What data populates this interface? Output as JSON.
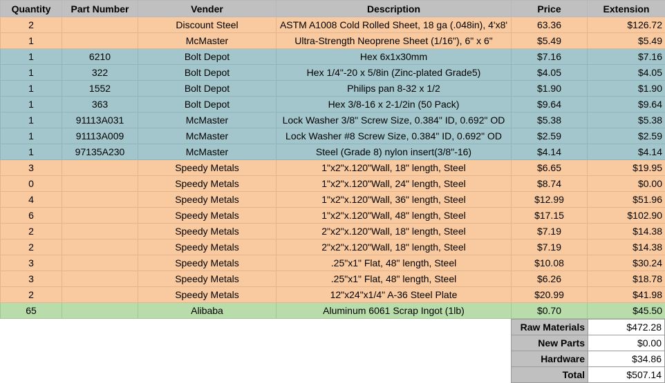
{
  "columns": [
    "Quantity",
    "Part Number",
    "Vender",
    "Description",
    "Price",
    "Extension"
  ],
  "rows": [
    {
      "qty": "2",
      "part": "",
      "vendor": "Discount Steel",
      "desc": "ASTM A1008 Cold Rolled Sheet, 18 ga (.048in), 4'x8'",
      "price": "63.36",
      "ext": "$126.72",
      "group": "raw"
    },
    {
      "qty": "1",
      "part": "",
      "vendor": "McMaster",
      "desc": "Ultra-Strength Neoprene Sheet (1/16\"), 6\" x 6\"",
      "price": "$5.49",
      "ext": "$5.49",
      "group": "raw"
    },
    {
      "qty": "1",
      "part": "6210",
      "vendor": "Bolt Depot",
      "desc": "Hex 6x1x30mm",
      "price": "$7.16",
      "ext": "$7.16",
      "group": "hw"
    },
    {
      "qty": "1",
      "part": "322",
      "vendor": "Bolt Depot",
      "desc": "Hex 1/4\"-20 x 5/8in (Zinc-plated Grade5)",
      "price": "$4.05",
      "ext": "$4.05",
      "group": "hw"
    },
    {
      "qty": "1",
      "part": "1552",
      "vendor": "Bolt Depot",
      "desc": "Philips pan 8-32 x 1/2",
      "price": "$1.90",
      "ext": "$1.90",
      "group": "hw"
    },
    {
      "qty": "1",
      "part": "363",
      "vendor": "Bolt Depot",
      "desc": "Hex 3/8-16 x 2-1/2in (50 Pack)",
      "price": "$9.64",
      "ext": "$9.64",
      "group": "hw"
    },
    {
      "qty": "1",
      "part": "91113A031",
      "vendor": "McMaster",
      "desc": "Lock Washer 3/8\" Screw Size, 0.384\" ID, 0.692\" OD",
      "price": "$5.38",
      "ext": "$5.38",
      "group": "hw"
    },
    {
      "qty": "1",
      "part": "91113A009",
      "vendor": "McMaster",
      "desc": "Lock Washer #8 Screw Size, 0.384\" ID, 0.692\" OD",
      "price": "$2.59",
      "ext": "$2.59",
      "group": "hw"
    },
    {
      "qty": "1",
      "part": "97135A230",
      "vendor": "McMaster",
      "desc": "Steel (Grade 8) nylon insert(3/8\"-16)",
      "price": "$4.14",
      "ext": "$4.14",
      "group": "hw"
    },
    {
      "qty": "3",
      "part": "",
      "vendor": "Speedy Metals",
      "desc": "1\"x2\"x.120\"Wall, 18\" length, Steel",
      "price": "$6.65",
      "ext": "$19.95",
      "group": "raw"
    },
    {
      "qty": "0",
      "part": "",
      "vendor": "Speedy Metals",
      "desc": "1\"x2\"x.120\"Wall, 24\" length, Steel",
      "price": "$8.74",
      "ext": "$0.00",
      "group": "raw"
    },
    {
      "qty": "4",
      "part": "",
      "vendor": "Speedy Metals",
      "desc": "1\"x2\"x.120\"Wall, 36\" length, Steel",
      "price": "$12.99",
      "ext": "$51.96",
      "group": "raw"
    },
    {
      "qty": "6",
      "part": "",
      "vendor": "Speedy Metals",
      "desc": "1\"x2\"x.120\"Wall, 48\" length, Steel",
      "price": "$17.15",
      "ext": "$102.90",
      "group": "raw"
    },
    {
      "qty": "2",
      "part": "",
      "vendor": "Speedy Metals",
      "desc": "2\"x2\"x.120\"Wall, 18\" length, Steel",
      "price": "$7.19",
      "ext": "$14.38",
      "group": "raw"
    },
    {
      "qty": "2",
      "part": "",
      "vendor": "Speedy Metals",
      "desc": "2\"x2\"x.120\"Wall, 18\" length, Steel",
      "price": "$7.19",
      "ext": "$14.38",
      "group": "raw"
    },
    {
      "qty": "3",
      "part": "",
      "vendor": "Speedy Metals",
      "desc": ".25\"x1\" Flat, 48\" length, Steel",
      "price": "$10.08",
      "ext": "$30.24",
      "group": "raw"
    },
    {
      "qty": "3",
      "part": "",
      "vendor": "Speedy Metals",
      "desc": ".25\"x1\" Flat, 48\" length, Steel",
      "price": "$6.26",
      "ext": "$18.78",
      "group": "raw"
    },
    {
      "qty": "2",
      "part": "",
      "vendor": "Speedy Metals",
      "desc": "12\"x24\"x1/4\" A-36 Steel Plate",
      "price": "$20.99",
      "ext": "$41.98",
      "group": "raw"
    },
    {
      "qty": "65",
      "part": "",
      "vendor": "Alibaba",
      "desc": "Aluminum 6061 Scrap Ingot (1lb)",
      "price": "$0.70",
      "ext": "$45.50",
      "group": "alu"
    }
  ],
  "totals": [
    {
      "label": "Raw Materials",
      "value": "$472.28"
    },
    {
      "label": "New Parts",
      "value": "$0.00"
    },
    {
      "label": "Hardware",
      "value": "$34.86"
    },
    {
      "label": "Total",
      "value": "$507.14"
    }
  ],
  "colors": {
    "raw": "#f9c9a0",
    "hardware": "#a3c6cc",
    "aluminum": "#b8dcaa",
    "header": "#c0c0c0"
  }
}
